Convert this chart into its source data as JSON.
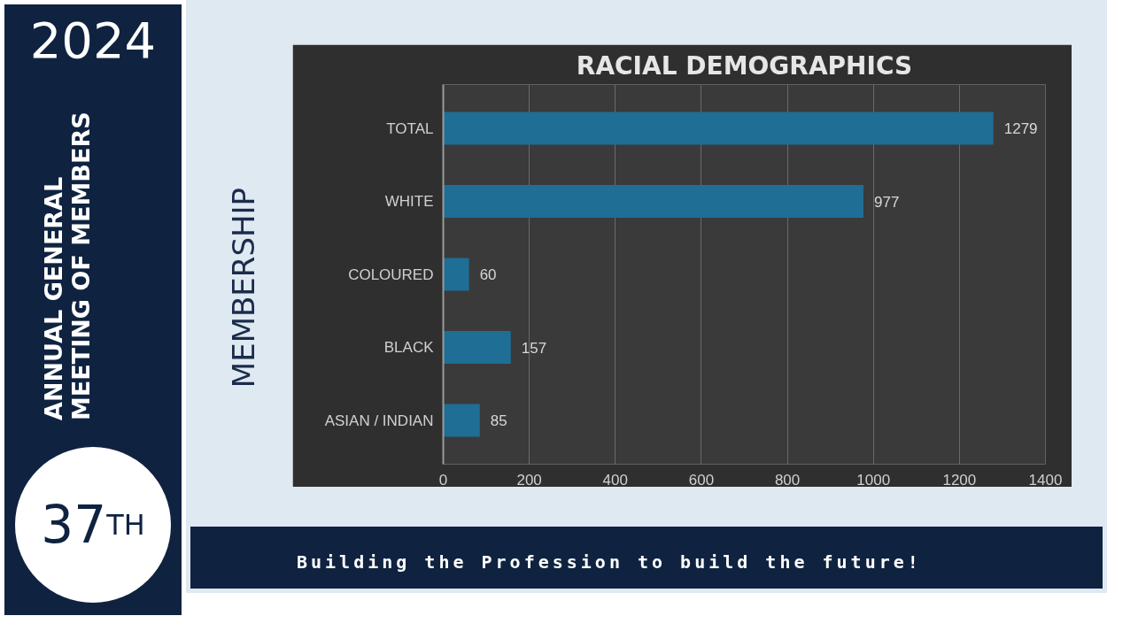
{
  "chart_data": {
    "type": "bar",
    "orientation": "horizontal",
    "title": "RACIAL DEMOGRAPHICS",
    "categories": [
      "TOTAL",
      "WHITE",
      "COLOURED",
      "BLACK",
      "ASIAN / INDIAN"
    ],
    "values": [
      1279,
      977,
      60,
      157,
      85
    ],
    "color": "#1f6e95",
    "xlim": [
      0,
      1400
    ],
    "xticks": [
      0,
      200,
      400,
      600,
      800,
      1000,
      1200,
      1400
    ],
    "grid": "x",
    "data_labels": true,
    "annotations": [
      "2024",
      "ANNUAL GENERAL MEETING OF MEMBERS",
      "37$^{TH}$",
      "MEMBERSHIP",
      "Building the Profession to build the future!"
    ]
  }
}
